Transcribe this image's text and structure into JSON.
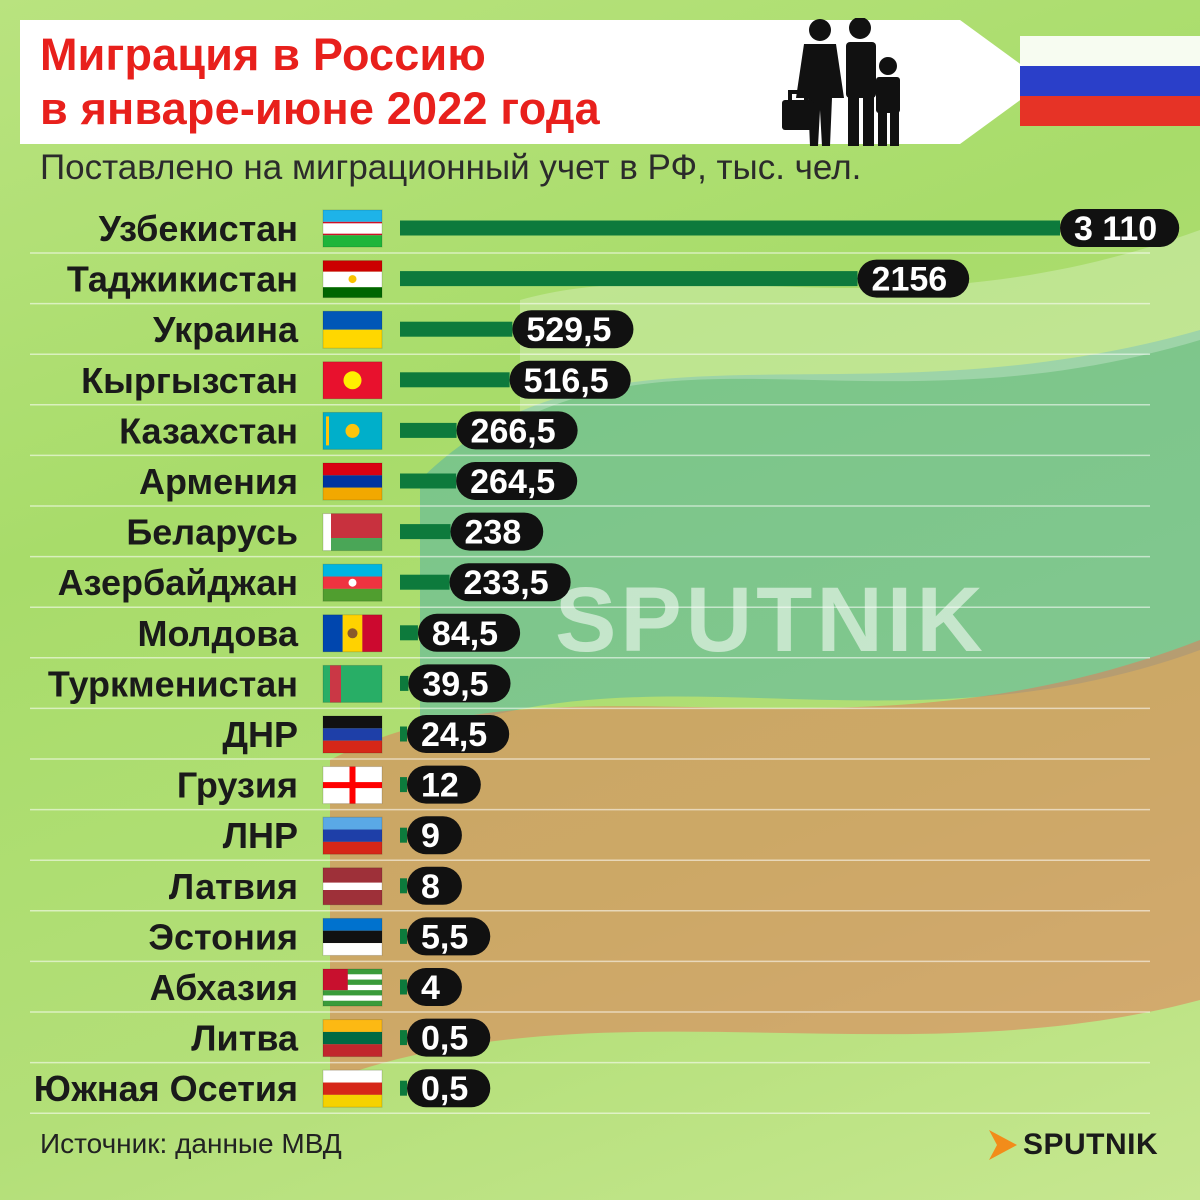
{
  "title_line1": "Миграция в Россию",
  "title_line2": "в январе-июне 2022 года",
  "subtitle": "Поставлено на миграционный учет в РФ, тыс. чел.",
  "source": "Источник: данные МВД",
  "watermark": "SPUTNIK",
  "logo": "SPUTNIK",
  "colors": {
    "title": "#e8201c",
    "bar": "#0d7a3c",
    "label_bg": "#111111",
    "background": "#b0df74"
  },
  "chart_data": {
    "type": "bar",
    "orientation": "horizontal",
    "title": "Миграция в Россию в январе-июне 2022 года",
    "subtitle": "Поставлено на миграционный учет в РФ, тыс. чел.",
    "categories": [
      "Узбекистан",
      "Таджикистан",
      "Украина",
      "Кыргызстан",
      "Казахстан",
      "Армения",
      "Беларусь",
      "Азербайджан",
      "Молдова",
      "Туркменистан",
      "ДНР",
      "Грузия",
      "ЛНР",
      "Латвия",
      "Эстония",
      "Абхазия",
      "Литва",
      "Южная Осетия"
    ],
    "values": [
      3110,
      2156,
      529.5,
      516.5,
      266.5,
      264.5,
      238,
      233.5,
      84.5,
      39.5,
      24.5,
      12,
      9,
      8,
      5.5,
      4,
      0.5,
      0.5
    ],
    "value_labels": [
      "3 110",
      "2156",
      "529,5",
      "516,5",
      "266,5",
      "264,5",
      "238",
      "233,5",
      "84,5",
      "39,5",
      "24,5",
      "12",
      "9",
      "8",
      "5,5",
      "4",
      "0,5",
      "0,5"
    ],
    "flags": [
      "uzbekistan-flag",
      "tajikistan-flag",
      "ukraine-flag",
      "kyrgyzstan-flag",
      "kazakhstan-flag",
      "armenia-flag",
      "belarus-flag",
      "azerbaijan-flag",
      "moldova-flag",
      "turkmenistan-flag",
      "dnr-flag",
      "georgia-flag",
      "lnr-flag",
      "latvia-flag",
      "estonia-flag",
      "abkhazia-flag",
      "lithuania-flag",
      "south-ossetia-flag"
    ],
    "unit": "тыс. чел.",
    "xlim": [
      0,
      3110
    ],
    "grid": false,
    "legend": "none"
  }
}
